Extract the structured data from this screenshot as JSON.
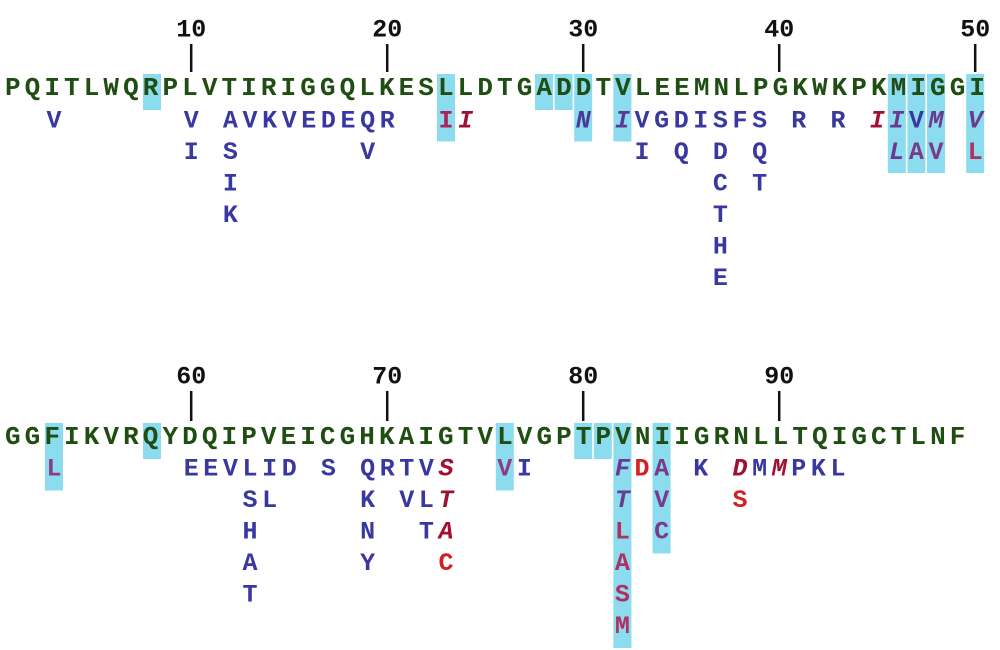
{
  "mutation_color": "#3838a0",
  "highlight_color": "#7fd8ee",
  "rows": [
    {
      "start": 1,
      "sequence": "PQITLWQRPLVTIRIGGQLKESLLDTGADDTVLEEMNLPGKWKPKMIGGI",
      "ticks": [
        10,
        20,
        30,
        40,
        50
      ],
      "mutations": [
        {
          "pos": 3,
          "aa": [
            {
              "text": "V"
            }
          ]
        },
        {
          "pos": 8,
          "highlight": true,
          "aa": []
        },
        {
          "pos": 10,
          "aa": [
            {
              "text": "V"
            },
            {
              "text": "I"
            }
          ]
        },
        {
          "pos": 12,
          "aa": [
            {
              "text": "A"
            },
            {
              "text": "S"
            },
            {
              "text": "I"
            },
            {
              "text": "K"
            }
          ]
        },
        {
          "pos": 13,
          "aa": [
            {
              "text": "V"
            }
          ]
        },
        {
          "pos": 14,
          "aa": [
            {
              "text": "K"
            }
          ]
        },
        {
          "pos": 15,
          "aa": [
            {
              "text": "V"
            }
          ]
        },
        {
          "pos": 16,
          "aa": [
            {
              "text": "E"
            }
          ]
        },
        {
          "pos": 17,
          "aa": [
            {
              "text": "D"
            }
          ]
        },
        {
          "pos": 18,
          "aa": [
            {
              "text": "E"
            }
          ]
        },
        {
          "pos": 19,
          "aa": [
            {
              "text": "Q"
            },
            {
              "text": "V"
            }
          ]
        },
        {
          "pos": 20,
          "aa": [
            {
              "text": "R"
            }
          ]
        },
        {
          "pos": 23,
          "highlight": true,
          "aa": [
            {
              "text": "I",
              "color": "#a8245a"
            }
          ]
        },
        {
          "pos": 24,
          "aa": [
            {
              "text": "I",
              "color": "#a01030",
              "italic": true
            }
          ]
        },
        {
          "pos": 28,
          "highlight": true,
          "aa": []
        },
        {
          "pos": 29,
          "highlight": true,
          "aa": []
        },
        {
          "pos": 30,
          "highlight": true,
          "aa": [
            {
              "text": "N",
              "color": "#4a3a98",
              "italic": true
            }
          ]
        },
        {
          "pos": 32,
          "highlight": true,
          "aa": [
            {
              "text": "I",
              "color": "#5a3a90",
              "italic": true
            }
          ]
        },
        {
          "pos": 33,
          "aa": [
            {
              "text": "V"
            },
            {
              "text": "I"
            }
          ]
        },
        {
          "pos": 34,
          "aa": [
            {
              "text": "G"
            }
          ]
        },
        {
          "pos": 35,
          "aa": [
            {
              "text": "D"
            },
            {
              "text": "Q"
            }
          ]
        },
        {
          "pos": 36,
          "aa": [
            {
              "text": "I"
            }
          ]
        },
        {
          "pos": 37,
          "aa": [
            {
              "text": "S"
            },
            {
              "text": "D"
            },
            {
              "text": "C"
            },
            {
              "text": "T"
            },
            {
              "text": "H"
            },
            {
              "text": "E"
            }
          ]
        },
        {
          "pos": 38,
          "aa": [
            {
              "text": "F"
            }
          ]
        },
        {
          "pos": 39,
          "aa": [
            {
              "text": "S"
            },
            {
              "text": "Q"
            },
            {
              "text": "T"
            }
          ]
        },
        {
          "pos": 41,
          "aa": [
            {
              "text": "R"
            }
          ]
        },
        {
          "pos": 43,
          "aa": [
            {
              "text": "R"
            }
          ]
        },
        {
          "pos": 45,
          "aa": [
            {
              "text": "I",
              "color": "#a01030",
              "italic": true
            }
          ]
        },
        {
          "pos": 46,
          "highlight": true,
          "aa": [
            {
              "text": "I",
              "color": "#6a3a90",
              "italic": true
            },
            {
              "text": "L",
              "color": "#6a3a90",
              "italic": true
            }
          ]
        },
        {
          "pos": 47,
          "highlight": true,
          "aa": [
            {
              "text": "V"
            },
            {
              "text": "A",
              "color": "#7a3a8a"
            }
          ]
        },
        {
          "pos": 48,
          "highlight": true,
          "aa": [
            {
              "text": "M",
              "color": "#6a3a90",
              "italic": true
            },
            {
              "text": "V",
              "color": "#7a3a8a"
            }
          ]
        },
        {
          "pos": 50,
          "highlight": true,
          "aa": [
            {
              "text": "V",
              "color": "#6a3a90",
              "italic": true
            },
            {
              "text": "L",
              "color": "#b03060"
            }
          ]
        }
      ]
    },
    {
      "start": 51,
      "sequence": "GGFIKVRQYDQIPVEICGHKAIGTVLVGPTPVNIIGRNLLTQIGCTLNF",
      "ticks": [
        60,
        70,
        80,
        90
      ],
      "mutations": [
        {
          "pos": 53,
          "highlight": true,
          "aa": [
            {
              "text": "L",
              "color": "#8a4080"
            }
          ]
        },
        {
          "pos": 58,
          "highlight": true,
          "aa": []
        },
        {
          "pos": 60,
          "aa": [
            {
              "text": "E"
            }
          ]
        },
        {
          "pos": 61,
          "aa": [
            {
              "text": "E"
            }
          ]
        },
        {
          "pos": 62,
          "aa": [
            {
              "text": "V"
            }
          ]
        },
        {
          "pos": 63,
          "aa": [
            {
              "text": "L"
            },
            {
              "text": "S"
            },
            {
              "text": "H"
            },
            {
              "text": "A"
            },
            {
              "text": "T"
            }
          ]
        },
        {
          "pos": 64,
          "aa": [
            {
              "text": "I"
            },
            {
              "text": "L"
            }
          ]
        },
        {
          "pos": 65,
          "aa": [
            {
              "text": "D"
            }
          ]
        },
        {
          "pos": 67,
          "aa": [
            {
              "text": "S"
            }
          ]
        },
        {
          "pos": 69,
          "aa": [
            {
              "text": "Q"
            },
            {
              "text": "K"
            },
            {
              "text": "N"
            },
            {
              "text": "Y"
            }
          ]
        },
        {
          "pos": 70,
          "aa": [
            {
              "text": "R"
            }
          ]
        },
        {
          "pos": 71,
          "aa": [
            {
              "text": "T"
            },
            {
              "text": "V"
            }
          ]
        },
        {
          "pos": 72,
          "aa": [
            {
              "text": "V"
            },
            {
              "text": "L"
            },
            {
              "text": "T"
            }
          ]
        },
        {
          "pos": 73,
          "aa": [
            {
              "text": "S",
              "color": "#a01030",
              "italic": true
            },
            {
              "text": "T",
              "color": "#a01030",
              "italic": true
            },
            {
              "text": "A",
              "color": "#a01030",
              "italic": true
            },
            {
              "text": "C",
              "color": "#d42020"
            }
          ]
        },
        {
          "pos": 76,
          "highlight": true,
          "aa": [
            {
              "text": "V",
              "color": "#8a4080"
            }
          ]
        },
        {
          "pos": 77,
          "aa": [
            {
              "text": "I"
            }
          ]
        },
        {
          "pos": 80,
          "highlight": true,
          "aa": []
        },
        {
          "pos": 81,
          "highlight": true,
          "aa": []
        },
        {
          "pos": 82,
          "highlight": true,
          "aa": [
            {
              "text": "F",
              "color": "#6a3a90",
              "italic": true
            },
            {
              "text": "T",
              "color": "#6a3a90",
              "italic": true
            },
            {
              "text": "L",
              "color": "#b03060"
            },
            {
              "text": "A",
              "color": "#b03060"
            },
            {
              "text": "S",
              "color": "#b03060"
            },
            {
              "text": "M",
              "color": "#b03060"
            }
          ]
        },
        {
          "pos": 83,
          "aa": [
            {
              "text": "D",
              "color": "#d42020"
            }
          ]
        },
        {
          "pos": 84,
          "highlight": true,
          "aa": [
            {
              "text": "A",
              "color": "#7a3a8a"
            },
            {
              "text": "V",
              "color": "#7a3a8a"
            },
            {
              "text": "C",
              "color": "#7a3a8a"
            }
          ]
        },
        {
          "pos": 86,
          "aa": [
            {
              "text": "K"
            }
          ]
        },
        {
          "pos": 88,
          "aa": [
            {
              "text": "D",
              "color": "#a01030",
              "italic": true
            },
            {
              "text": "S",
              "color": "#d42020"
            }
          ]
        },
        {
          "pos": 89,
          "aa": [
            {
              "text": "M"
            }
          ]
        },
        {
          "pos": 90,
          "aa": [
            {
              "text": "M",
              "color": "#a01030",
              "italic": true
            }
          ]
        },
        {
          "pos": 91,
          "aa": [
            {
              "text": "P"
            }
          ]
        },
        {
          "pos": 92,
          "aa": [
            {
              "text": "K"
            }
          ]
        },
        {
          "pos": 93,
          "aa": [
            {
              "text": "L"
            }
          ]
        }
      ]
    }
  ]
}
